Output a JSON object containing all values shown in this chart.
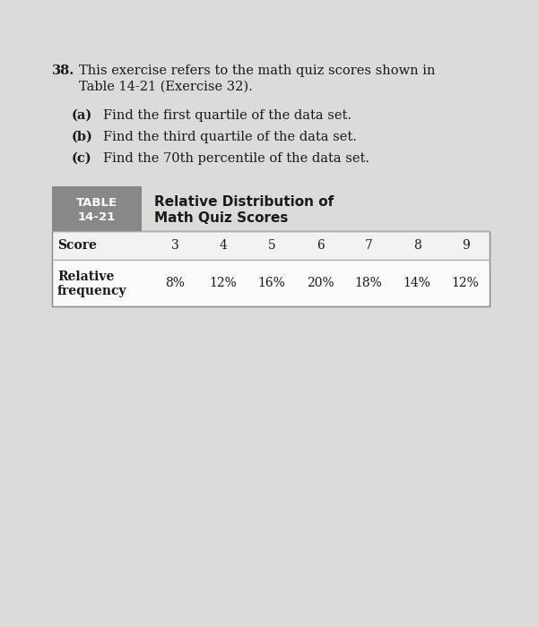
{
  "problem_number": "38.",
  "intro_line1": "This exercise refers to the math quiz scores shown in",
  "intro_line2": "Table 14-21 (Exercise 32).",
  "parts": [
    {
      "label": "(a)",
      "text": "Find the first quartile of the data set."
    },
    {
      "label": "(b)",
      "text": "Find the third quartile of the data set."
    },
    {
      "label": "(c)",
      "text": "Find the 70th percentile of the data set."
    }
  ],
  "table_label_line1": "TABLE",
  "table_label_line2": "14-21",
  "table_title_line1": "Relative Distribution of",
  "table_title_line2": "Math Quiz Scores",
  "table_header_label": "Score",
  "table_scores": [
    "3",
    "4",
    "5",
    "6",
    "7",
    "8",
    "9"
  ],
  "table_freq_label_line1": "Relative",
  "table_freq_label_line2": "frequency",
  "table_frequencies": [
    "8%",
    "12%",
    "16%",
    "20%",
    "18%",
    "14%",
    "12%"
  ],
  "page_bg": "#dddbd8",
  "table_header_bg": "#888888",
  "table_border_color": "#aaaaaa",
  "table_row_bg": "#f2f2f2",
  "text_color": "#1a1a1a",
  "white": "#ffffff"
}
